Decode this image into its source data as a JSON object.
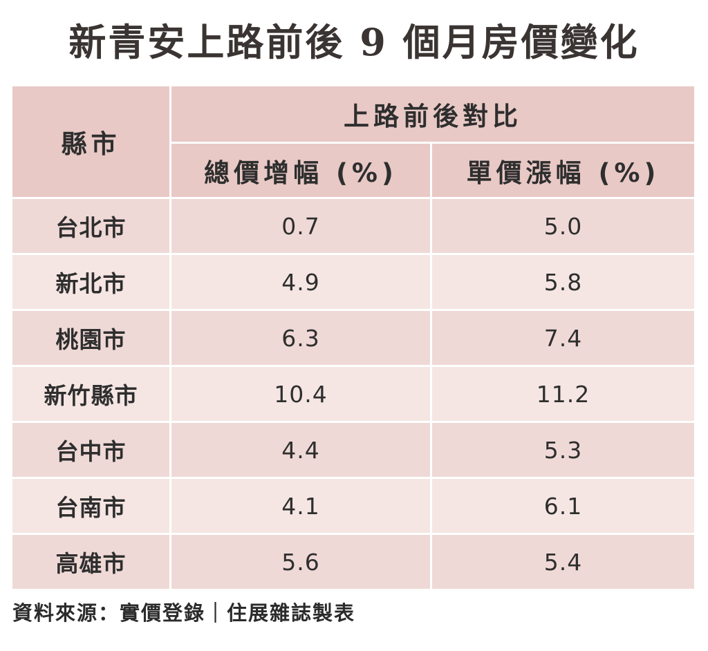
{
  "title": "新青安上路前後 9 個月房價變化",
  "table": {
    "county_header": "縣市",
    "group_header": "上路前後對比",
    "col_total": "總價增幅 (%)",
    "col_unit": "單價漲幅 (%)",
    "rows": [
      {
        "county": "台北市",
        "total": "0.7",
        "unit": "5.0"
      },
      {
        "county": "新北市",
        "total": "4.9",
        "unit": "5.8"
      },
      {
        "county": "桃園市",
        "total": "6.3",
        "unit": "7.4"
      },
      {
        "county": "新竹縣市",
        "total": "10.4",
        "unit": "11.2"
      },
      {
        "county": "台中市",
        "total": "4.4",
        "unit": "5.3"
      },
      {
        "county": "台南市",
        "total": "4.1",
        "unit": "6.1"
      },
      {
        "county": "高雄市",
        "total": "5.6",
        "unit": "5.4"
      }
    ]
  },
  "source": "資料來源：實價登錄｜住展雜誌製表",
  "colors": {
    "header_bg": "#e8c9c6",
    "row_odd_bg": "#efd9d6",
    "row_even_bg": "#f5e6e3"
  }
}
